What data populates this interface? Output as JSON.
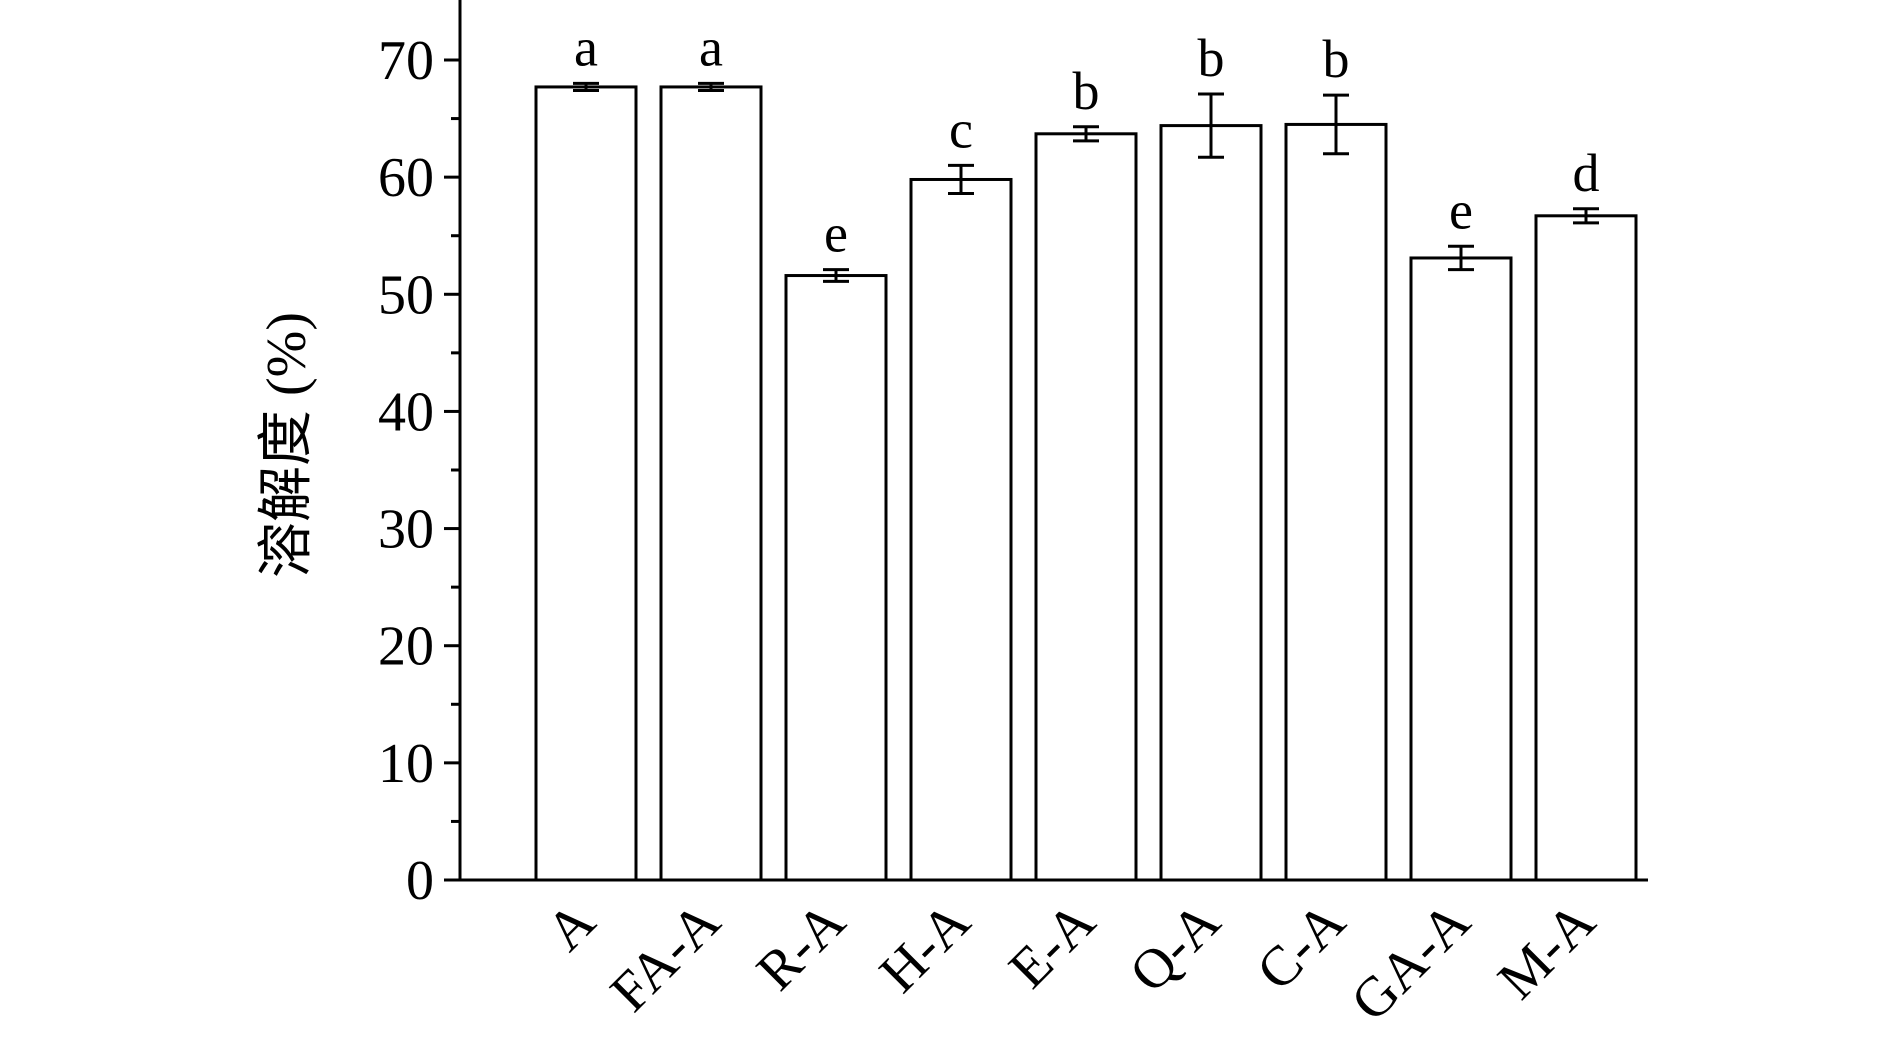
{
  "chart_data": {
    "type": "bar",
    "ylabel": "溶解度 (%)",
    "xlabel": "",
    "ylim": [
      0,
      75
    ],
    "yticks": [
      0,
      10,
      20,
      30,
      40,
      50,
      60,
      70
    ],
    "categories": [
      "A",
      "FA-A",
      "R-A",
      "H-A",
      "E-A",
      "Q-A",
      "C-A",
      "GA-A",
      "M-A"
    ],
    "values": [
      67.7,
      67.7,
      51.6,
      59.8,
      63.7,
      64.4,
      64.5,
      53.1,
      56.7
    ],
    "errors": [
      0.3,
      0.3,
      0.5,
      1.2,
      0.6,
      2.7,
      2.5,
      1.0,
      0.6
    ],
    "significance": [
      "a",
      "a",
      "e",
      "c",
      "b",
      "b",
      "b",
      "e",
      "d"
    ],
    "grid": false,
    "legend": "none",
    "bar_fill": "#ffffff",
    "bar_stroke": "#000000"
  }
}
